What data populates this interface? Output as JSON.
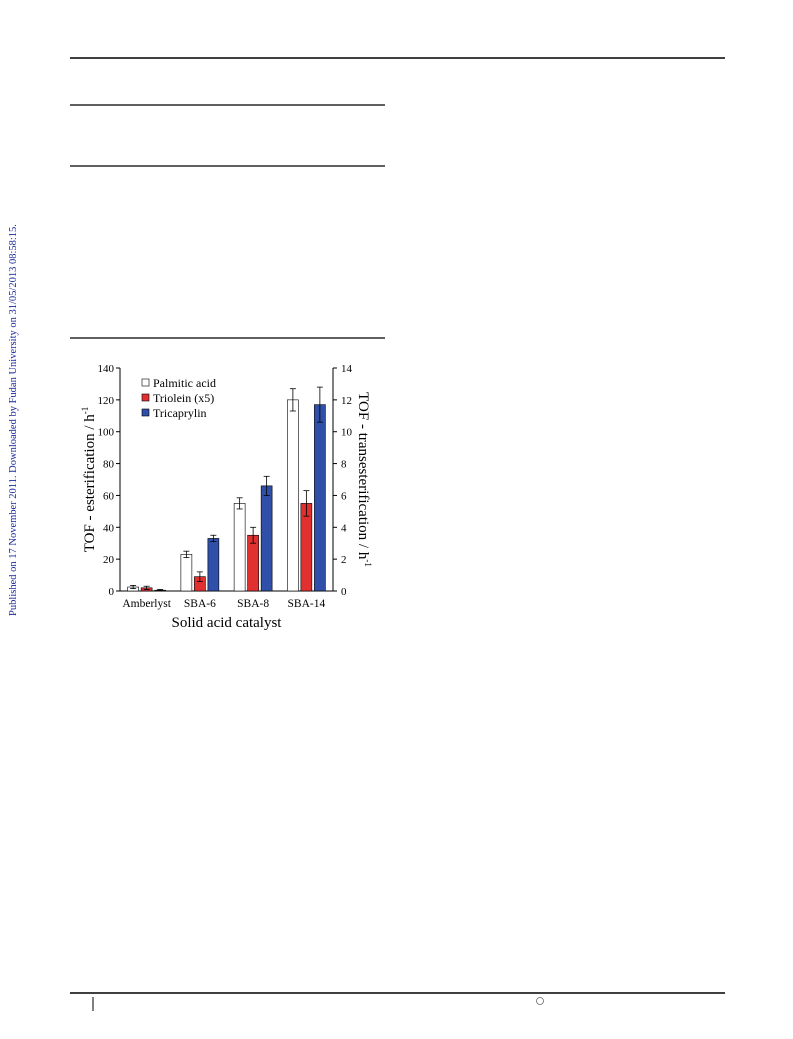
{
  "sidebar": "Published on 17 November 2011. Downloaded by Fudan University on 31/05/2013 08:58:15.",
  "chart_data": {
    "type": "bar",
    "ylabel": "TOF  - esterification / h",
    "ylabel_sup": "-1",
    "y2label": "TOF - transesterification / h",
    "y2label_sup": "-1",
    "xlabel": "Solid acid catalyst",
    "categories": [
      "Amberlyst",
      "SBA-6",
      "SBA-8",
      "SBA-14"
    ],
    "series": [
      {
        "name": "Palmitic acid",
        "color": "#ffffff",
        "values": [
          2.5,
          23,
          55,
          120
        ],
        "errors": [
          1,
          2,
          3.5,
          7
        ]
      },
      {
        "name": "Triolein (x5)",
        "color": "#e03030",
        "axis": "y2",
        "values": [
          0.2,
          0.9,
          3.5,
          5.5
        ],
        "errors": [
          0.1,
          0.3,
          0.5,
          0.8
        ]
      },
      {
        "name": "Tricaprylin",
        "color": "#2f4fa8",
        "axis": "y2",
        "values": [
          0.05,
          3.3,
          6.6,
          11.7
        ],
        "errors": [
          0.05,
          0.2,
          0.6,
          1.1
        ]
      }
    ],
    "ylim": [
      0,
      140
    ],
    "yticks": [
      0,
      20,
      40,
      60,
      80,
      100,
      120,
      140
    ],
    "y2lim": [
      0,
      14
    ],
    "y2ticks": [
      0,
      2,
      4,
      6,
      8,
      10,
      12,
      14
    ],
    "legend": "upper-left"
  }
}
